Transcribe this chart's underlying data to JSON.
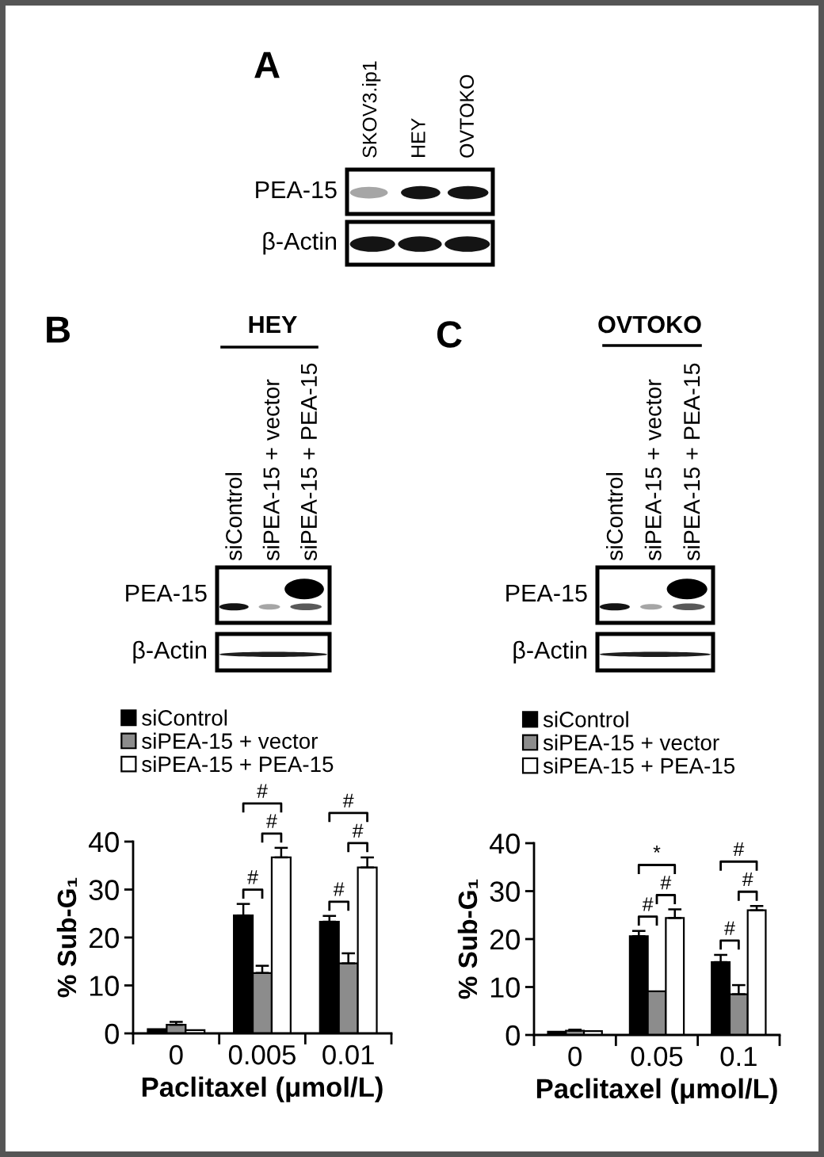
{
  "chart_data": [
    {
      "type": "other",
      "title": "A",
      "categories": [
        "SKOV3.ip1",
        "HEY",
        "OVTOKO"
      ],
      "y_categories": [
        "PEA-15",
        "β-Actin"
      ]
    },
    {
      "type": "other",
      "title": "B",
      "subtitle": "HEY",
      "categories": [
        "siControl",
        "siPEA-15 + vector",
        "siPEA-15 + PEA-15"
      ],
      "y_categories": [
        "PEA-15",
        "β-Actin"
      ]
    },
    {
      "type": "other",
      "title": "C",
      "subtitle": "OVTOKO",
      "categories": [
        "siControl",
        "siPEA-15 + vector",
        "siPEA-15 + PEA-15"
      ],
      "y_categories": [
        "PEA-15",
        "β-Actin"
      ]
    },
    {
      "type": "bar",
      "categories": [
        "0",
        "0.005",
        "0.01"
      ],
      "series": [
        {
          "name": "siControl",
          "color": "#000000",
          "values": [
            0.9,
            24.6,
            23.3
          ],
          "errors": [
            null,
            [
              24.6,
              27.0
            ],
            [
              23.3,
              24.5
            ]
          ]
        },
        {
          "name": "siPEA-15 + vector",
          "color": "#8c8c8c",
          "values": [
            1.8,
            12.6,
            14.6
          ],
          "errors": [
            [
              1.8,
              2.4
            ],
            [
              12.6,
              14.1
            ],
            [
              14.6,
              16.7
            ]
          ]
        },
        {
          "name": "siPEA-15 + PEA-15",
          "color": "#ffffff",
          "values": [
            0.7,
            36.7,
            34.6
          ],
          "errors": [
            null,
            [
              36.7,
              38.7
            ],
            [
              34.6,
              36.7
            ]
          ]
        }
      ],
      "xlabel": "Paclitaxel (μmol/L)",
      "ylabel": "% Sub-G₁",
      "ylim": [
        0,
        40
      ],
      "yticks": [
        0,
        10,
        20,
        30,
        40
      ],
      "legend": "top left",
      "annotations": [
        "#",
        "#",
        "#",
        "#",
        "#",
        "#"
      ]
    },
    {
      "type": "bar",
      "categories": [
        "0",
        "0.05",
        "0.1"
      ],
      "series": [
        {
          "name": "siControl",
          "color": "#000000",
          "values": [
            0.7,
            20.6,
            15.2
          ],
          "errors": [
            null,
            [
              20.6,
              21.7
            ],
            [
              15.2,
              16.7
            ]
          ]
        },
        {
          "name": "siPEA-15 + vector",
          "color": "#8c8c8c",
          "values": [
            0.9,
            9.1,
            8.5
          ],
          "errors": [
            [
              0.9,
              1.1
            ],
            null,
            [
              8.5,
              10.4
            ]
          ]
        },
        {
          "name": "siPEA-15 + PEA-15",
          "color": "#ffffff",
          "values": [
            0.8,
            24.4,
            26.0
          ],
          "errors": [
            null,
            [
              24.4,
              26.2
            ],
            [
              26.0,
              26.9
            ]
          ]
        }
      ],
      "xlabel": "Paclitaxel (μmol/L)",
      "ylabel": "% Sub-G₁",
      "ylim": [
        0,
        40
      ],
      "yticks": [
        0,
        10,
        20,
        30,
        40
      ],
      "legend": "top left",
      "annotations": [
        "#",
        "#",
        "*",
        "#",
        "#",
        "#"
      ]
    }
  ]
}
